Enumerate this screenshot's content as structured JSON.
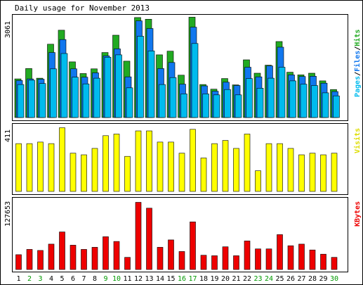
{
  "chart_data": [
    {
      "type": "bar",
      "title": "Daily usage for November 2013",
      "panel": "pages-files-hits",
      "ymax_label": "3061",
      "ylim": [
        0,
        3061
      ],
      "legend": {
        "pages": "Pages",
        "sep1": "/",
        "files": "Files",
        "sep2": "/",
        "hits": "Hits"
      },
      "categories": [
        "1",
        "2",
        "3",
        "4",
        "5",
        "6",
        "7",
        "8",
        "9",
        "10",
        "11",
        "12",
        "13",
        "14",
        "15",
        "16",
        "17",
        "18",
        "19",
        "20",
        "21",
        "22",
        "23",
        "24",
        "25",
        "26",
        "27",
        "28",
        "29",
        "30"
      ],
      "weekend_days": [
        "2",
        "3",
        "9",
        "10",
        "16",
        "17",
        "23",
        "24",
        "30"
      ],
      "series": [
        {
          "name": "Hits",
          "values": [
            1160,
            1470,
            1180,
            2200,
            2620,
            1670,
            1320,
            1460,
            1950,
            2470,
            1690,
            3000,
            2950,
            1880,
            1990,
            1270,
            3010,
            990,
            850,
            1170,
            980,
            1730,
            1330,
            1570,
            2280,
            1360,
            1280,
            1330,
            1100,
            840
          ]
        },
        {
          "name": "Files",
          "values": [
            1110,
            1160,
            1150,
            1950,
            2340,
            1460,
            1210,
            1340,
            1850,
            2060,
            1220,
            2900,
            2670,
            1470,
            1650,
            1000,
            2710,
            950,
            790,
            1060,
            960,
            1510,
            1220,
            1550,
            2110,
            1280,
            1230,
            1240,
            1030,
            780
          ]
        },
        {
          "name": "Pages",
          "values": [
            990,
            1120,
            1020,
            1460,
            1920,
            1210,
            1010,
            1180,
            1810,
            1880,
            890,
            2440,
            2000,
            990,
            1200,
            710,
            2220,
            710,
            680,
            840,
            680,
            1170,
            880,
            1180,
            1510,
            1100,
            1000,
            960,
            740,
            650
          ]
        }
      ]
    },
    {
      "type": "bar",
      "panel": "visits",
      "ymax_label": "411",
      "ylim": [
        0,
        411
      ],
      "legend": {
        "visits": "Visits"
      },
      "categories": [
        "1",
        "2",
        "3",
        "4",
        "5",
        "6",
        "7",
        "8",
        "9",
        "10",
        "11",
        "12",
        "13",
        "14",
        "15",
        "16",
        "17",
        "18",
        "19",
        "20",
        "21",
        "22",
        "23",
        "24",
        "25",
        "26",
        "27",
        "28",
        "29",
        "30"
      ],
      "series": [
        {
          "name": "Visits",
          "values": [
            300,
            300,
            310,
            300,
            400,
            240,
            230,
            270,
            350,
            360,
            220,
            380,
            380,
            310,
            310,
            240,
            390,
            210,
            300,
            320,
            270,
            360,
            130,
            300,
            300,
            270,
            230,
            240,
            230,
            240
          ]
        }
      ]
    },
    {
      "type": "bar",
      "panel": "kbytes",
      "ymax_label": "127653",
      "ylim": [
        0,
        127653
      ],
      "legend": {
        "kbytes": "KBytes"
      },
      "categories": [
        "1",
        "2",
        "3",
        "4",
        "5",
        "6",
        "7",
        "8",
        "9",
        "10",
        "11",
        "12",
        "13",
        "14",
        "15",
        "16",
        "17",
        "18",
        "19",
        "20",
        "21",
        "22",
        "23",
        "24",
        "25",
        "26",
        "27",
        "28",
        "29",
        "30"
      ],
      "series": [
        {
          "name": "KBytes",
          "values": [
            28000,
            38000,
            36000,
            48000,
            71000,
            46000,
            38000,
            42000,
            62000,
            53000,
            23000,
            127000,
            116000,
            42000,
            56000,
            34000,
            90000,
            27000,
            26000,
            43000,
            26000,
            54000,
            39000,
            39000,
            66000,
            45000,
            48000,
            37000,
            29000,
            23000
          ]
        }
      ]
    }
  ],
  "colors": {
    "hits": "#22aa22",
    "files": "#1177ee",
    "pages": "#00bbee",
    "visits": "#ffff00",
    "kbytes": "#ee0000",
    "weekday_label": "#000000",
    "weekend_label": "#009900",
    "panel_border": "#000000",
    "background": "#ffffff"
  }
}
